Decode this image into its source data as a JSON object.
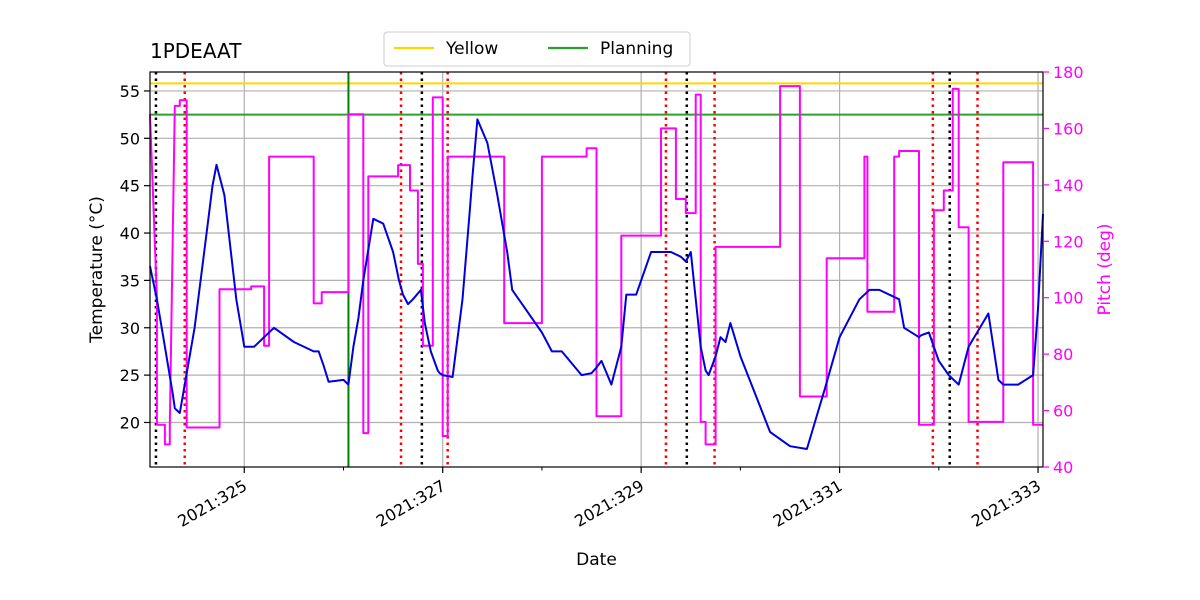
{
  "chart_data": {
    "type": "line",
    "title": "1PDEAAT",
    "xlabel": "Date",
    "ylabel_left": "Temperature ($^\\circ$C)",
    "ylabel_left_display": "Temperature (°C)",
    "ylabel_right": "Pitch (deg)",
    "x_unit": "day of year 2021",
    "xlim": [
      324.05,
      333.05
    ],
    "ylim_left": [
      15.3,
      57.0
    ],
    "ylim_right": [
      40,
      180
    ],
    "x_major_ticks": [
      325,
      327,
      329,
      331,
      333
    ],
    "x_tick_labels": [
      "2021:325",
      "2021:327",
      "2021:329",
      "2021:331",
      "2021:333"
    ],
    "x_minor_ticks": [
      326,
      328,
      330,
      332
    ],
    "y_left_ticks": [
      20,
      25,
      30,
      35,
      40,
      45,
      50,
      55
    ],
    "y_left_tick_labels": [
      "20",
      "25",
      "30",
      "35",
      "40",
      "45",
      "50",
      "55"
    ],
    "y_right_ticks": [
      40,
      60,
      80,
      100,
      120,
      140,
      160,
      180
    ],
    "y_right_tick_labels": [
      "40",
      "60",
      "80",
      "100",
      "120",
      "140",
      "160",
      "180"
    ],
    "grid": true,
    "legend_position": "top-center, above plot",
    "legend": [
      {
        "label": "Yellow",
        "color": "#ffd700"
      },
      {
        "label": "Planning",
        "color": "#2ca02c"
      }
    ],
    "horizontal_limits": [
      {
        "name": "Yellow",
        "value": 55.8,
        "color": "#ffd700"
      },
      {
        "name": "Planning",
        "value": 52.5,
        "color": "#2ca02c"
      }
    ],
    "vertical_lines": [
      {
        "x": 324.11,
        "color": "#000000",
        "style": "dotted"
      },
      {
        "x": 324.4,
        "color": "#ff0000",
        "style": "dotted"
      },
      {
        "x": 326.05,
        "color": "#008000",
        "style": "solid"
      },
      {
        "x": 326.58,
        "color": "#ff0000",
        "style": "dotted"
      },
      {
        "x": 326.79,
        "color": "#000000",
        "style": "dotted"
      },
      {
        "x": 327.05,
        "color": "#ff0000",
        "style": "dotted"
      },
      {
        "x": 329.25,
        "color": "#ff0000",
        "style": "dotted"
      },
      {
        "x": 329.46,
        "color": "#000000",
        "style": "dotted"
      },
      {
        "x": 329.74,
        "color": "#ff0000",
        "style": "dotted"
      },
      {
        "x": 331.94,
        "color": "#ff0000",
        "style": "dotted"
      },
      {
        "x": 332.11,
        "color": "#000000",
        "style": "dotted"
      },
      {
        "x": 332.39,
        "color": "#ff0000",
        "style": "dotted"
      }
    ],
    "series": [
      {
        "name": "Temperature",
        "axis": "left",
        "color": "#0000dd",
        "x": [
          324.05,
          324.12,
          324.2,
          324.28,
          324.3,
          324.35,
          324.5,
          324.62,
          324.68,
          324.72,
          324.8,
          324.92,
          325.0,
          325.1,
          325.2,
          325.3,
          325.5,
          325.7,
          325.75,
          325.8,
          325.85,
          326.0,
          326.05,
          326.1,
          326.15,
          326.2,
          326.3,
          326.4,
          326.5,
          326.56,
          326.6,
          326.65,
          326.7,
          326.78,
          326.82,
          326.88,
          326.95,
          326.97,
          327.0,
          327.1,
          327.2,
          327.27,
          327.3,
          327.35,
          327.45,
          327.55,
          327.65,
          327.7,
          327.8,
          328.0,
          328.1,
          328.2,
          328.4,
          328.5,
          328.55,
          328.6,
          328.7,
          328.8,
          328.85,
          328.95,
          329.1,
          329.3,
          329.4,
          329.45,
          329.5,
          329.6,
          329.65,
          329.68,
          329.75,
          329.8,
          329.85,
          329.9,
          330.0,
          330.3,
          330.5,
          330.67,
          330.75,
          330.85,
          331.0,
          331.2,
          331.28,
          331.3,
          331.4,
          331.6,
          331.65,
          331.8,
          331.82,
          331.9,
          332.0,
          332.1,
          332.2,
          332.3,
          332.5,
          332.6,
          332.65,
          332.8,
          332.95,
          333.0,
          333.05
        ],
        "y": [
          36.5,
          33.0,
          28.0,
          23.0,
          21.5,
          21.0,
          30.0,
          40.0,
          45.0,
          47.2,
          44.0,
          33.0,
          28.0,
          28.0,
          29.0,
          30.0,
          28.5,
          27.5,
          27.5,
          26.0,
          24.3,
          24.5,
          24.0,
          28.0,
          31.0,
          35.0,
          41.5,
          41.0,
          38.0,
          35.0,
          33.5,
          32.5,
          33.0,
          34.0,
          30.5,
          27.5,
          25.5,
          25.2,
          25.0,
          24.8,
          33.0,
          42.0,
          46.0,
          52.0,
          49.5,
          44.0,
          38.0,
          34.0,
          32.5,
          29.5,
          27.5,
          27.5,
          25.0,
          25.2,
          25.8,
          26.5,
          24.0,
          28.0,
          33.5,
          33.5,
          38.0,
          38.0,
          37.5,
          37.0,
          38.0,
          28.0,
          25.5,
          25.0,
          27.0,
          29.0,
          28.5,
          30.5,
          27.0,
          19.0,
          17.5,
          17.2,
          20.0,
          23.5,
          29.0,
          33.0,
          33.8,
          34.0,
          34.0,
          33.0,
          30.0,
          29.0,
          29.2,
          29.5,
          26.5,
          25.0,
          24.0,
          28.0,
          31.5,
          24.5,
          24.0,
          24.0,
          25.0,
          32.0,
          42.0
        ]
      },
      {
        "name": "Pitch",
        "axis": "right",
        "color": "#ff00ff",
        "x": [
          324.05,
          324.12,
          324.12,
          324.2,
          324.2,
          324.25,
          324.25,
          324.3,
          324.35,
          324.35,
          324.42,
          324.42,
          324.44,
          324.44,
          324.75,
          324.75,
          325.07,
          325.07,
          325.2,
          325.2,
          325.25,
          325.25,
          325.7,
          325.7,
          325.78,
          325.78,
          326.05,
          326.05,
          326.2,
          326.2,
          326.25,
          326.25,
          326.55,
          326.55,
          326.67,
          326.67,
          326.75,
          326.75,
          326.8,
          326.8,
          326.9,
          326.9,
          327.0,
          327.0,
          327.05,
          327.05,
          327.27,
          327.27,
          327.62,
          327.62,
          328.0,
          328.0,
          328.45,
          328.45,
          328.55,
          328.55,
          328.8,
          328.8,
          329.2,
          329.2,
          329.35,
          329.35,
          329.45,
          329.45,
          329.55,
          329.55,
          329.6,
          329.6,
          329.65,
          329.65,
          329.75,
          329.75,
          329.83,
          329.83,
          330.4,
          330.4,
          330.6,
          330.6,
          330.87,
          330.87,
          331.25,
          331.25,
          331.28,
          331.28,
          331.55,
          331.55,
          331.6,
          331.6,
          331.8,
          331.8,
          331.95,
          331.95,
          332.05,
          332.05,
          332.14,
          332.14,
          332.2,
          332.2,
          332.3,
          332.3,
          332.4,
          332.4,
          332.65,
          332.65,
          332.95,
          332.95,
          333.05
        ],
        "y": [
          165,
          100,
          55,
          55,
          48,
          48,
          55,
          168,
          168,
          170,
          170,
          54,
          54,
          54,
          54,
          103,
          103,
          104,
          104,
          83,
          83,
          150,
          150,
          98,
          98,
          102,
          102,
          165,
          165,
          52,
          52,
          143,
          143,
          147,
          147,
          138,
          138,
          112,
          112,
          83,
          83,
          171,
          171,
          51,
          51,
          150,
          150,
          150,
          150,
          91,
          91,
          150,
          150,
          153,
          153,
          58,
          58,
          122,
          122,
          160,
          160,
          135,
          135,
          130,
          130,
          172,
          172,
          56,
          56,
          48,
          48,
          118,
          118,
          118,
          118,
          175,
          175,
          65,
          65,
          114,
          114,
          150,
          150,
          95,
          95,
          150,
          150,
          152,
          152,
          55,
          55,
          131,
          131,
          138,
          138,
          174,
          174,
          125,
          125,
          56,
          56,
          56,
          56,
          148,
          148,
          55,
          55
        ]
      }
    ]
  }
}
